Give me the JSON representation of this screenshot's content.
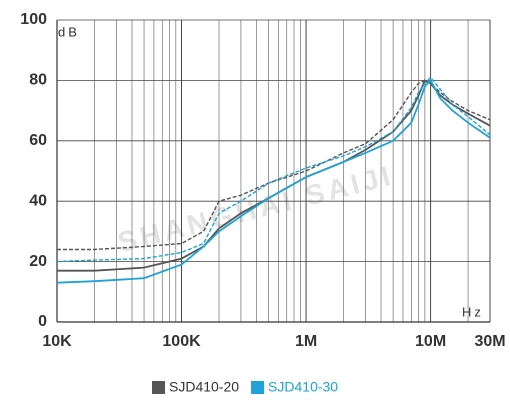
{
  "chart_data": {
    "type": "line",
    "y_label": "dB",
    "x_label": "Hz",
    "watermark": "SHANGHAI SAIJI",
    "x": [
      10000,
      20000,
      50000,
      100000,
      150000,
      200000,
      300000,
      500000,
      1000000,
      2000000,
      3000000,
      5000000,
      7000000,
      8000000,
      9000000,
      10000000,
      12000000,
      15000000,
      20000000,
      30000000
    ],
    "xlim": [
      10000,
      30000000
    ],
    "log_x": true,
    "xticks": [
      {
        "value": 10000,
        "label": "10K"
      },
      {
        "value": 100000,
        "label": "100K"
      },
      {
        "value": 1000000,
        "label": "1M"
      },
      {
        "value": 10000000,
        "label": "10M"
      },
      {
        "value": 30000000,
        "label": "30M"
      }
    ],
    "ylim": [
      0,
      100
    ],
    "yticks": [
      0,
      20,
      40,
      60,
      80,
      100
    ],
    "grid": true,
    "legend": "bottom",
    "series": [
      {
        "name": "SJD410-20",
        "color": "#555555",
        "lines": [
          {
            "style": "solid",
            "values": [
              17,
              17,
              18,
              21,
              25,
              31,
              36,
              41,
              48,
              53,
              57,
              63,
              70,
              75,
              80,
              79,
              75,
              72,
              69,
              65
            ]
          },
          {
            "style": "dashed",
            "values": [
              24,
              24,
              25,
              26,
              30,
              40,
              42,
              46,
              50,
              56,
              59,
              67,
              76,
              79,
              80,
              79,
              76,
              73,
              70,
              67
            ]
          }
        ]
      },
      {
        "name": "SJD410-30",
        "color": "#1fa3d6",
        "lines": [
          {
            "style": "solid",
            "values": [
              13,
              13.5,
              14.5,
              19,
              25,
              30,
              35,
              41,
              48,
              53,
              56,
              60,
              66,
              72,
              78,
              80,
              74,
              70,
              66,
              61
            ]
          },
          {
            "style": "dashed",
            "values": [
              20,
              20.5,
              21,
              23,
              26,
              36,
              40,
              46,
              51,
              55,
              58,
              63,
              71,
              76,
              79,
              81,
              77,
              72,
              68,
              62
            ]
          }
        ]
      }
    ]
  }
}
